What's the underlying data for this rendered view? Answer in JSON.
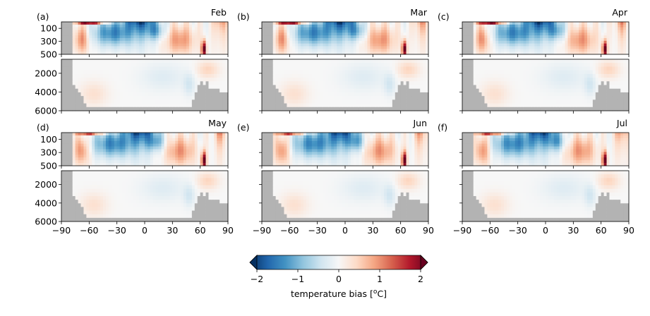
{
  "chart_data": {
    "type": "heatmap",
    "description_units": "x: latitude in degrees; y: depth in meters (upper axis 0-500, lower axis 500-6000)",
    "x_ticks": [
      "−90",
      "−60",
      "−30",
      "0",
      "30",
      "60",
      "90"
    ],
    "x_tick_values": [
      -90,
      -60,
      -30,
      0,
      30,
      60,
      90
    ],
    "xlim": [
      -90,
      90
    ],
    "upper_y_ticks": [
      "100",
      "300",
      "500"
    ],
    "upper_y_tick_values": [
      100,
      300,
      500
    ],
    "upper_ylim": [
      500,
      0
    ],
    "lower_y_ticks": [
      "2000",
      "4000",
      "6000"
    ],
    "lower_y_tick_values": [
      2000,
      4000,
      6000
    ],
    "lower_ylim": [
      6000,
      500
    ],
    "colormap": "RdBu_r",
    "clim": [
      -2,
      2
    ],
    "colorbar": {
      "ticks": [
        "−2",
        "−1",
        "0",
        "1",
        "2"
      ],
      "tick_values": [
        -2,
        -1,
        0,
        1,
        2
      ],
      "label_prefix": "temperature bias [",
      "label_sup": "o",
      "label_suffix": "C]",
      "extend": "both"
    },
    "land_color": "#b3b3b3",
    "panels": [
      {
        "label": "(a)",
        "month": "Feb"
      },
      {
        "label": "(b)",
        "month": "Mar"
      },
      {
        "label": "(c)",
        "month": "Apr"
      },
      {
        "label": "(d)",
        "month": "May"
      },
      {
        "label": "(e)",
        "month": "Jun"
      },
      {
        "label": "(f)",
        "month": "Jul"
      }
    ]
  }
}
